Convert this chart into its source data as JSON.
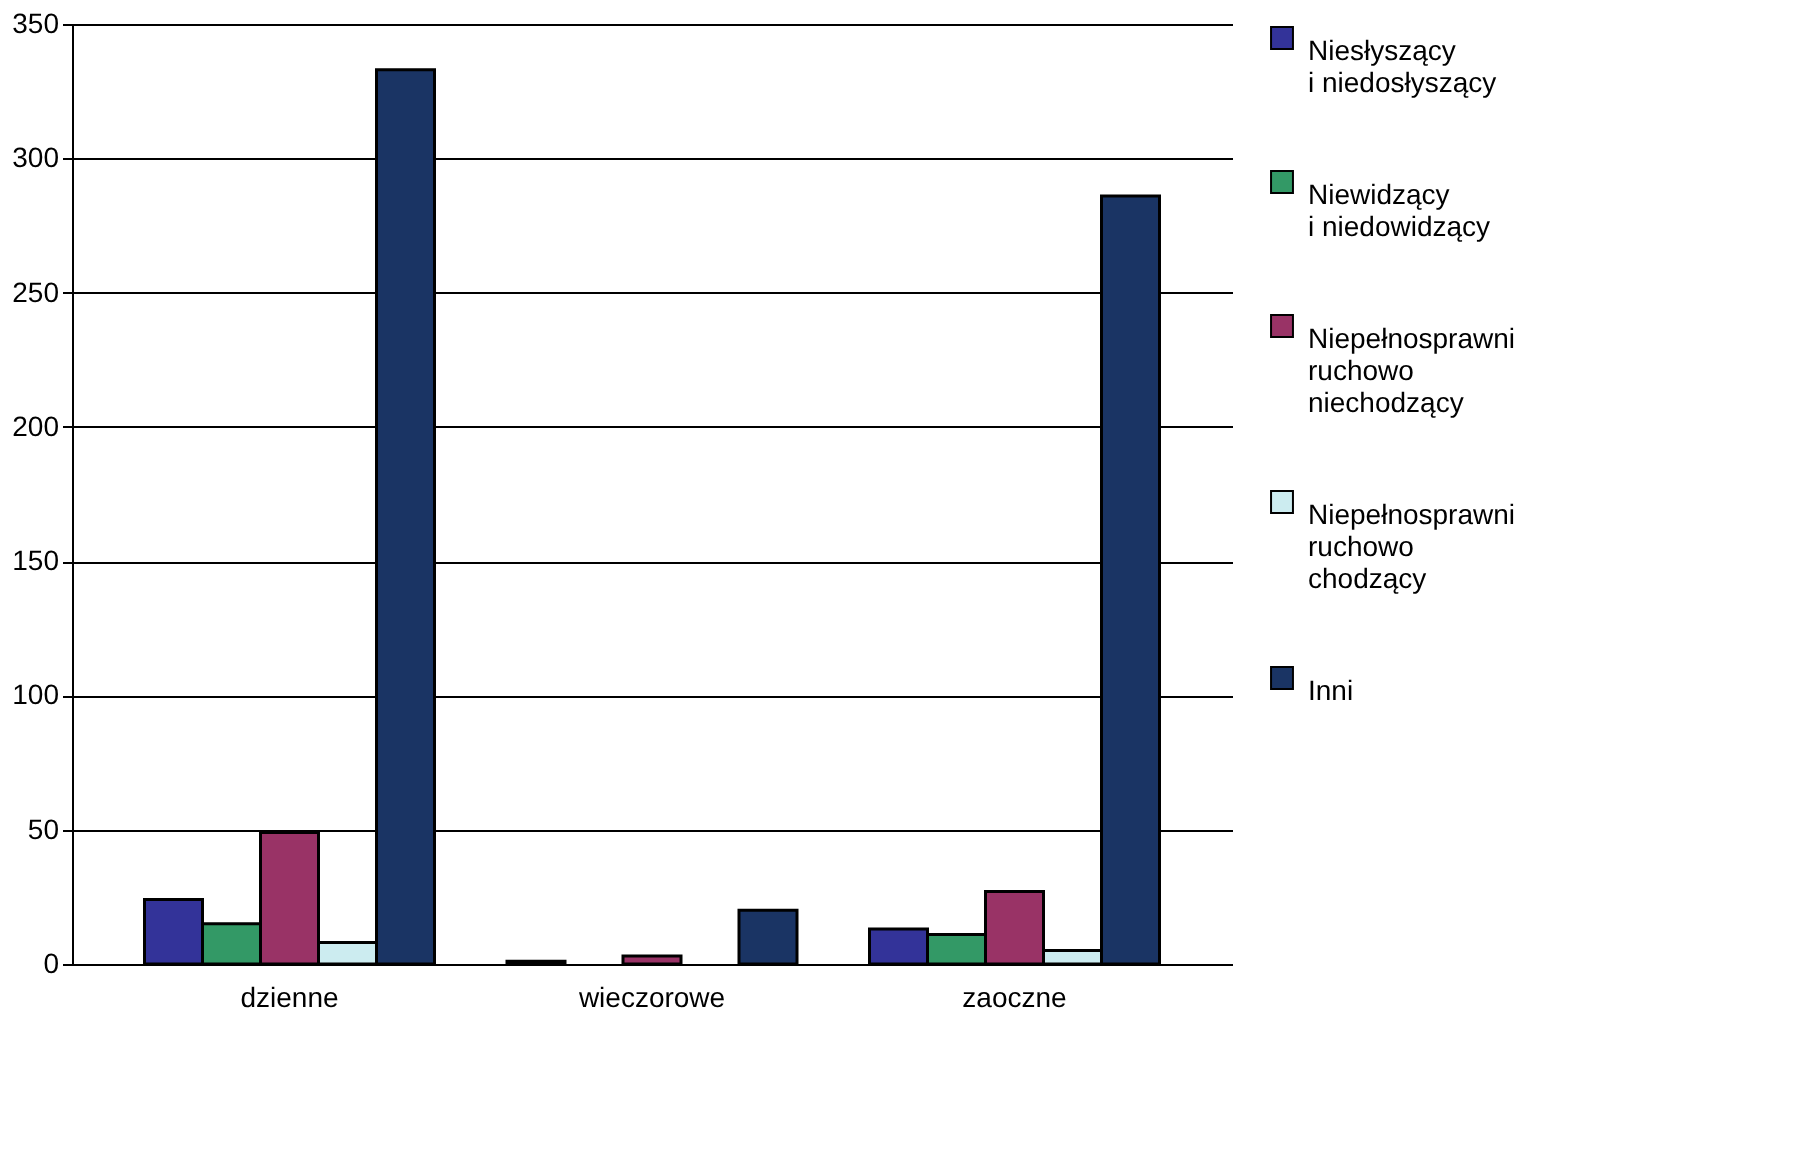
{
  "chart_data": {
    "type": "bar",
    "categories": [
      "dzienne",
      "wieczorowe",
      "zaoczne"
    ],
    "series": [
      {
        "name": "Niesłyszący\ni niedosłyszący",
        "color": "#333399",
        "values": [
          24,
          1,
          13
        ]
      },
      {
        "name": "Niewidzący\ni niedowidzący",
        "color": "#339966",
        "values": [
          15,
          null,
          11
        ]
      },
      {
        "name": "Niepełnosprawni\nruchowo\nniechodzący",
        "color": "#993366",
        "values": [
          49,
          3,
          27
        ]
      },
      {
        "name": "Niepełnosprawni\nruchowo\nchodzący",
        "color": "#ccecf0",
        "values": [
          8,
          null,
          5
        ]
      },
      {
        "name": "Inni",
        "color": "#1a3464",
        "values": [
          333,
          20,
          286
        ]
      }
    ],
    "ylim": [
      0,
      350
    ],
    "yticks": [
      0,
      50,
      100,
      150,
      200,
      250,
      300,
      350
    ],
    "grid": "y",
    "legend": "right"
  }
}
